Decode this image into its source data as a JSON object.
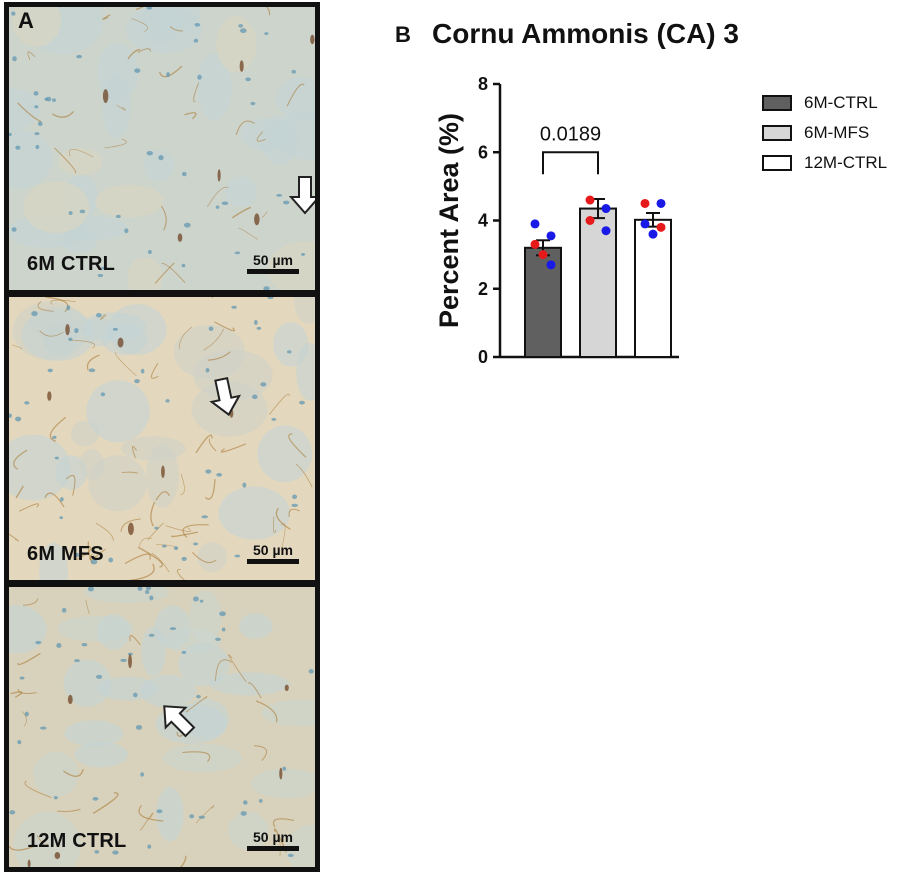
{
  "panel_a": {
    "letter": "A",
    "images": [
      {
        "label": "6M CTRL",
        "scale": "50 µm"
      },
      {
        "label": "6M MFS",
        "scale": "50 µm"
      },
      {
        "label": "12M CTRL",
        "scale": "50 µm"
      }
    ]
  },
  "panel_b": {
    "letter": "B"
  },
  "chart_data": {
    "type": "bar",
    "title": "Cornu Ammonis (CA) 3",
    "xlabel": "",
    "ylabel": "Percent Area (%)",
    "ylim": [
      0,
      8
    ],
    "yticks": [
      0,
      2,
      4,
      6,
      8
    ],
    "categories": [
      "6M-CTRL",
      "6M-MFS",
      "12M-CTRL"
    ],
    "values": [
      3.2,
      4.35,
      4.02
    ],
    "sem": [
      0.22,
      0.28,
      0.2
    ],
    "bar_colors": [
      "#606060",
      "#d6d6d6",
      "#ffffff"
    ],
    "points": [
      [
        {
          "y": 3.9,
          "color": "#1a1ae6"
        },
        {
          "y": 3.55,
          "color": "#1a1ae6"
        },
        {
          "y": 3.3,
          "color": "#e61a1a"
        },
        {
          "y": 2.7,
          "color": "#1a1ae6"
        },
        {
          "y": 3.0,
          "color": "#e61a1a"
        }
      ],
      [
        {
          "y": 4.6,
          "color": "#e61a1a"
        },
        {
          "y": 4.35,
          "color": "#1a1ae6"
        },
        {
          "y": 4.0,
          "color": "#e61a1a"
        },
        {
          "y": 3.7,
          "color": "#1a1ae6"
        }
      ],
      [
        {
          "y": 4.5,
          "color": "#e61a1a"
        },
        {
          "y": 4.5,
          "color": "#1a1ae6"
        },
        {
          "y": 3.9,
          "color": "#1a1ae6"
        },
        {
          "y": 3.8,
          "color": "#e61a1a"
        },
        {
          "y": 3.6,
          "color": "#1a1ae6"
        }
      ]
    ],
    "annotation": {
      "text": "0.0189",
      "from": 0,
      "to": 1,
      "y": 6.0
    },
    "legend": {
      "placement": "top-right",
      "entries": [
        "6M-CTRL",
        "6M-MFS",
        "12M-CTRL"
      ]
    }
  }
}
